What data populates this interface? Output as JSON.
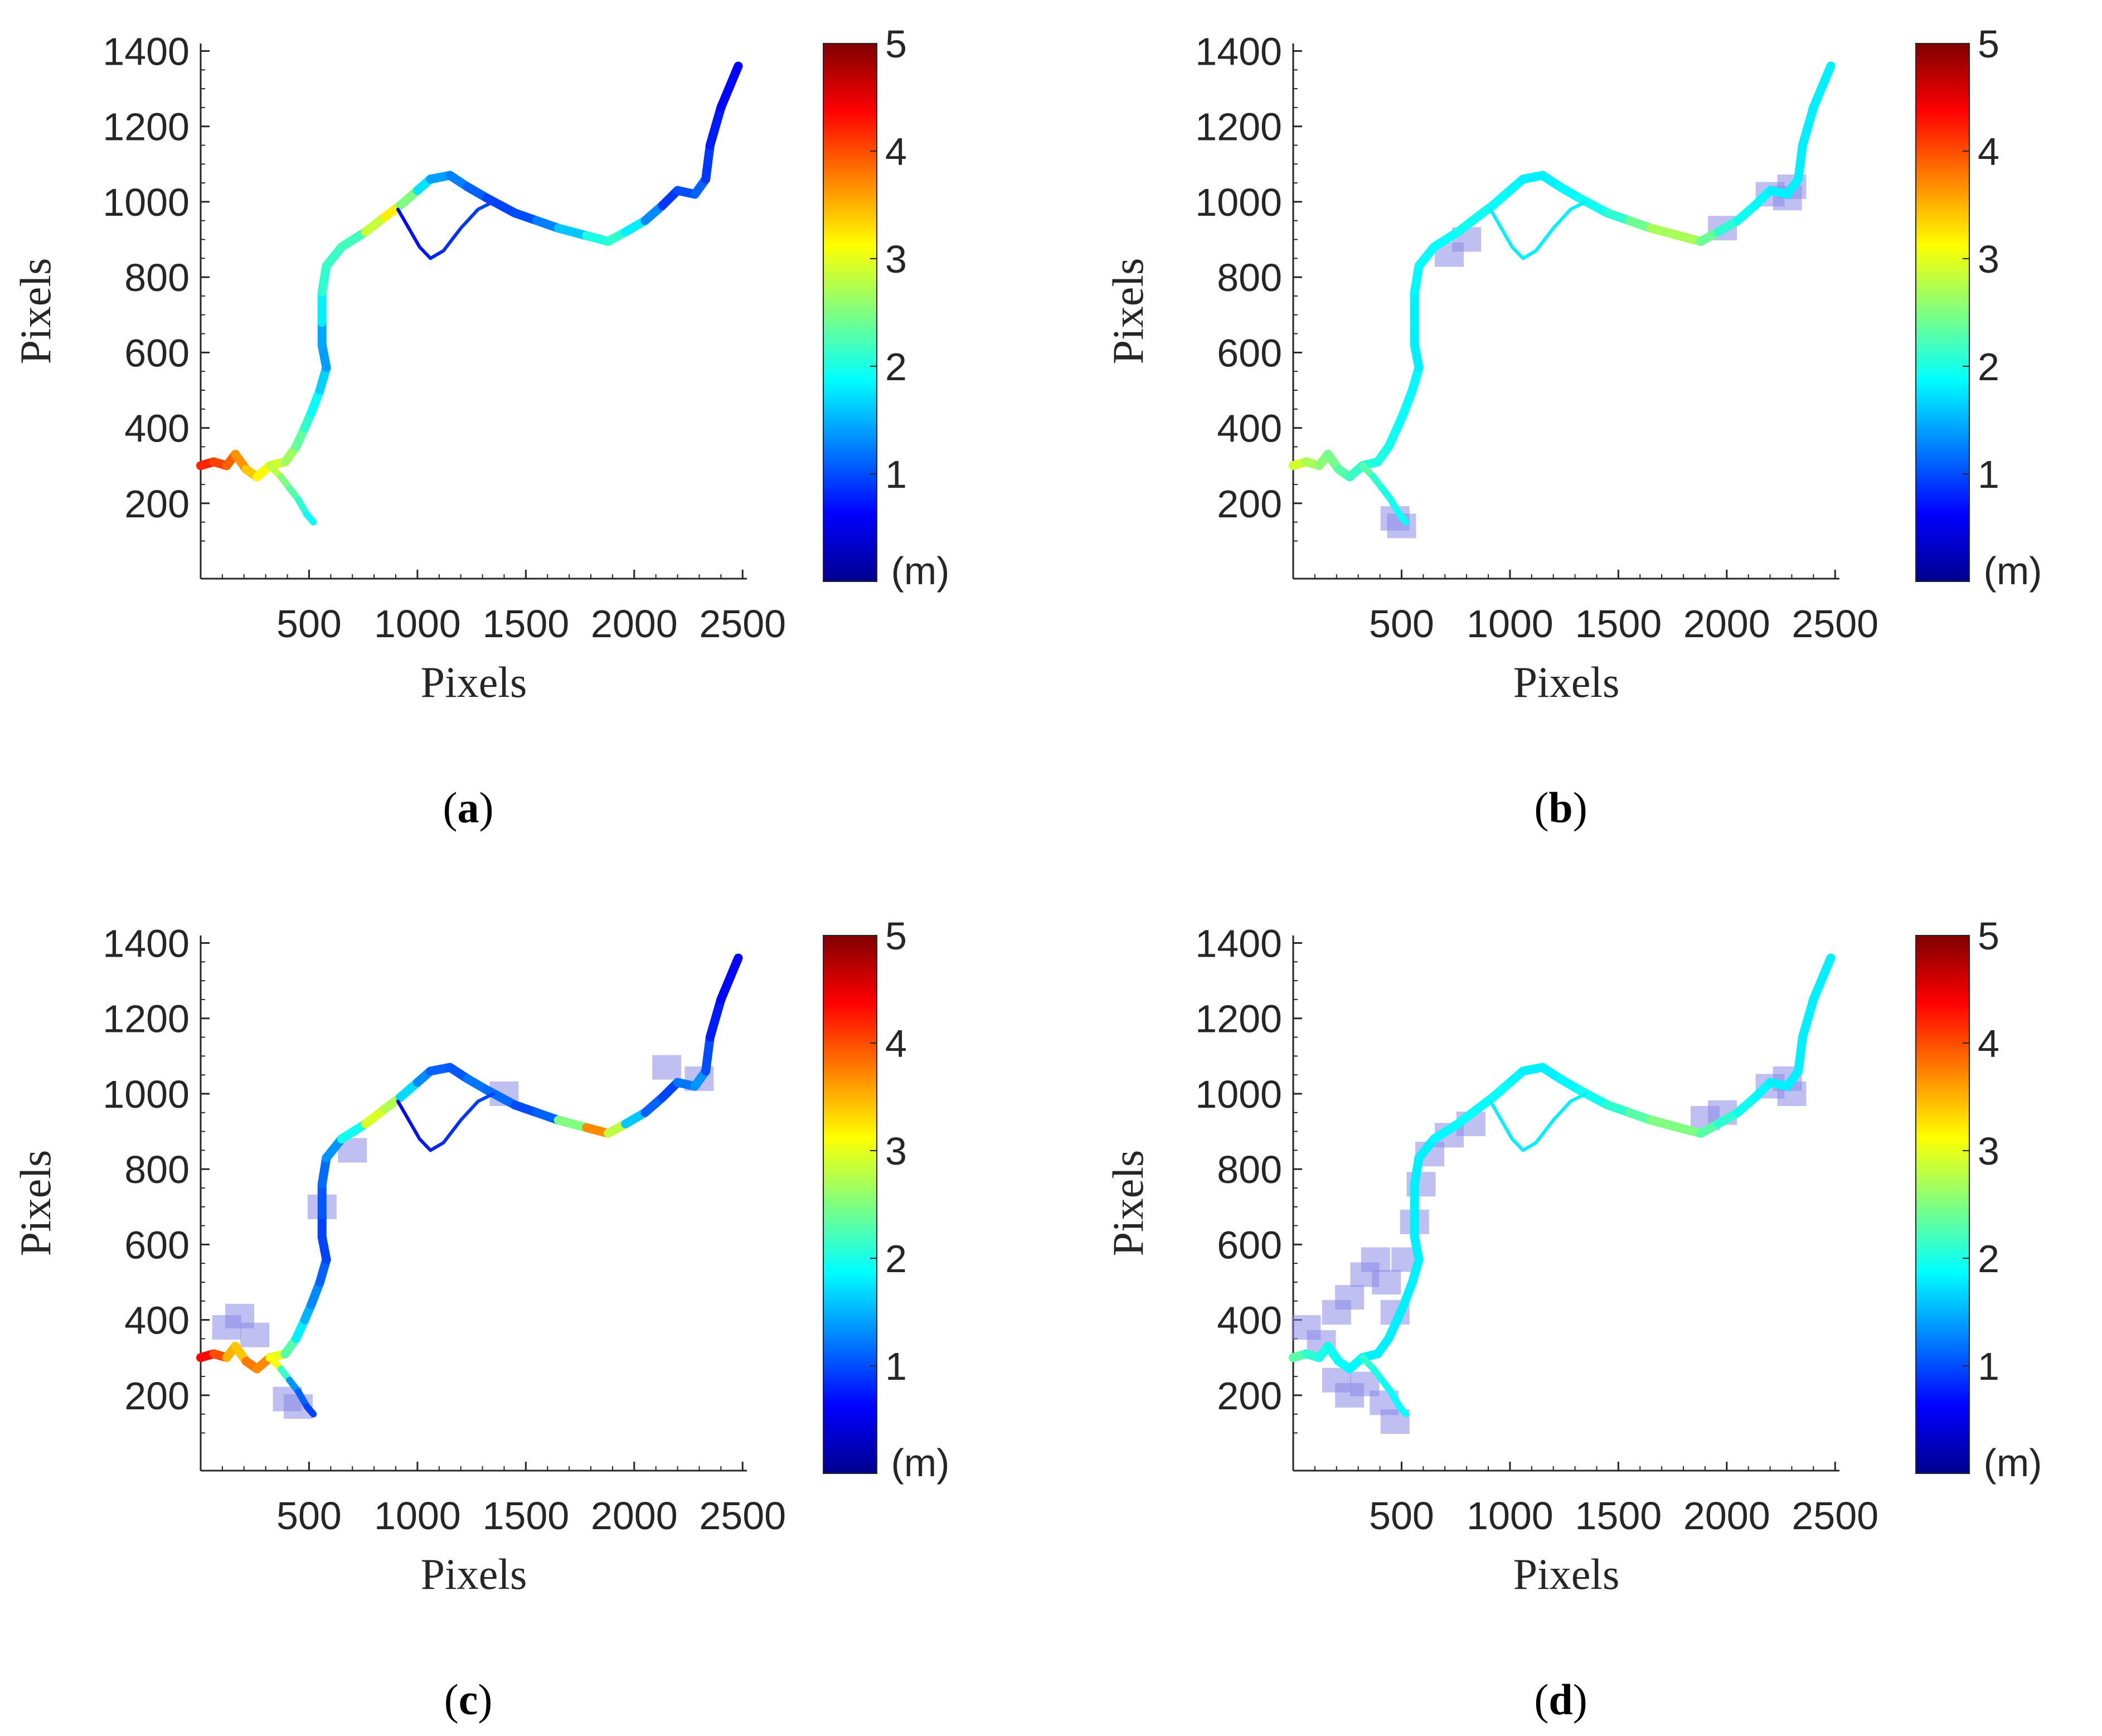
{
  "figure": {
    "colormap": "jet",
    "colormap_stops": [
      "#00008f",
      "#0000ff",
      "#0080ff",
      "#00ffff",
      "#80ff80",
      "#ffff00",
      "#ff8000",
      "#ff0000",
      "#800000"
    ]
  },
  "chart_data": [
    {
      "type": "heatmap",
      "panel": "a",
      "caption_letter": "a",
      "caption_open": "(",
      "caption_close": ")",
      "xlabel": "Pixels",
      "ylabel": "Pixels",
      "x_ticks": [
        "500",
        "1000",
        "1500",
        "2000",
        "2500"
      ],
      "y_ticks": [
        "1400",
        "1200",
        "1000",
        "800",
        "600",
        "400",
        "200"
      ],
      "xlim": [
        0,
        2520
      ],
      "ylim": [
        0,
        1420
      ],
      "colorbar": {
        "ticks": [
          "5",
          "4",
          "3",
          "2",
          "1"
        ],
        "range": [
          0,
          5
        ],
        "unit": "(m)"
      },
      "map_points": [
        [
          0,
          300
        ],
        [
          60,
          310
        ],
        [
          120,
          300
        ],
        [
          160,
          330
        ],
        [
          210,
          290
        ],
        [
          260,
          270
        ],
        [
          320,
          300
        ],
        [
          390,
          310
        ],
        [
          440,
          350
        ],
        [
          480,
          400
        ],
        [
          510,
          440
        ],
        [
          550,
          500
        ],
        [
          580,
          560
        ],
        [
          560,
          620
        ],
        [
          560,
          680
        ],
        [
          560,
          760
        ],
        [
          580,
          830
        ],
        [
          650,
          880
        ],
        [
          760,
          920
        ],
        [
          850,
          960
        ],
        [
          920,
          990
        ],
        [
          1000,
          1030
        ],
        [
          1060,
          1060
        ],
        [
          1150,
          1070
        ],
        [
          1230,
          1040
        ],
        [
          1320,
          1010
        ],
        [
          1450,
          970
        ],
        [
          1550,
          950
        ],
        [
          1650,
          930
        ],
        [
          1780,
          910
        ],
        [
          1880,
          895
        ],
        [
          1960,
          920
        ],
        [
          2050,
          950
        ],
        [
          2130,
          990
        ],
        [
          2200,
          1030
        ],
        [
          2280,
          1020
        ],
        [
          2330,
          1060
        ],
        [
          2350,
          1150
        ],
        [
          2400,
          1250
        ],
        [
          2480,
          1360
        ]
      ],
      "branch_points": [
        [
          910,
          980
        ],
        [
          960,
          930
        ],
        [
          1010,
          880
        ],
        [
          1060,
          850
        ],
        [
          1120,
          870
        ],
        [
          1200,
          930
        ],
        [
          1280,
          980
        ],
        [
          1350,
          1000
        ]
      ],
      "lower_branch": [
        [
          320,
          300
        ],
        [
          370,
          270
        ],
        [
          410,
          240
        ],
        [
          450,
          210
        ],
        [
          490,
          170
        ],
        [
          520,
          150
        ]
      ],
      "depths": [
        4.3,
        4.1,
        4.0,
        3.8,
        3.5,
        3.3,
        3.0,
        2.8,
        2.5,
        2.2,
        2.0,
        1.8,
        1.5,
        1.3,
        1.6,
        2.0,
        2.2,
        2.1,
        2.3,
        3.4,
        3.0,
        2.0,
        1.5,
        1.3,
        1.2,
        1.0,
        0.9,
        1.1,
        1.4,
        1.8,
        2.2,
        2.0,
        1.6,
        1.0,
        0.8,
        1.2,
        1.0,
        0.8,
        0.7,
        0.6
      ],
      "branch_depths": [
        0.6,
        0.7,
        0.7,
        0.8,
        0.8,
        0.9,
        0.9,
        1.0
      ],
      "lower_depths": [
        3.0,
        2.6,
        2.4,
        2.2,
        2.0,
        1.8
      ],
      "patches": []
    },
    {
      "type": "heatmap",
      "panel": "b",
      "caption_letter": "b",
      "caption_open": "(",
      "caption_close": ")",
      "xlabel": "Pixels",
      "ylabel": "Pixels",
      "x_ticks": [
        "500",
        "1000",
        "1500",
        "2000",
        "2500"
      ],
      "y_ticks": [
        "1400",
        "1200",
        "1000",
        "800",
        "600",
        "400",
        "200"
      ],
      "xlim": [
        0,
        2520
      ],
      "ylim": [
        0,
        1420
      ],
      "colorbar": {
        "ticks": [
          "5",
          "4",
          "3",
          "2",
          "1"
        ],
        "range": [
          0,
          5
        ],
        "unit": "(m)"
      },
      "map_points": [
        [
          0,
          300
        ],
        [
          60,
          310
        ],
        [
          120,
          300
        ],
        [
          160,
          330
        ],
        [
          210,
          290
        ],
        [
          260,
          270
        ],
        [
          320,
          300
        ],
        [
          390,
          310
        ],
        [
          440,
          350
        ],
        [
          480,
          400
        ],
        [
          510,
          440
        ],
        [
          550,
          500
        ],
        [
          580,
          560
        ],
        [
          560,
          620
        ],
        [
          560,
          680
        ],
        [
          560,
          760
        ],
        [
          580,
          830
        ],
        [
          650,
          880
        ],
        [
          760,
          920
        ],
        [
          850,
          960
        ],
        [
          920,
          990
        ],
        [
          1000,
          1030
        ],
        [
          1060,
          1060
        ],
        [
          1150,
          1070
        ],
        [
          1230,
          1040
        ],
        [
          1320,
          1010
        ],
        [
          1450,
          970
        ],
        [
          1550,
          950
        ],
        [
          1650,
          930
        ],
        [
          1780,
          910
        ],
        [
          1880,
          895
        ],
        [
          1960,
          920
        ],
        [
          2050,
          950
        ],
        [
          2130,
          990
        ],
        [
          2200,
          1030
        ],
        [
          2280,
          1020
        ],
        [
          2330,
          1060
        ],
        [
          2350,
          1150
        ],
        [
          2400,
          1250
        ],
        [
          2480,
          1360
        ]
      ],
      "branch_points": [
        [
          910,
          980
        ],
        [
          960,
          930
        ],
        [
          1010,
          880
        ],
        [
          1060,
          850
        ],
        [
          1120,
          870
        ],
        [
          1200,
          930
        ],
        [
          1280,
          980
        ],
        [
          1350,
          1000
        ]
      ],
      "lower_branch": [
        [
          320,
          300
        ],
        [
          370,
          270
        ],
        [
          410,
          240
        ],
        [
          450,
          210
        ],
        [
          490,
          170
        ],
        [
          520,
          150
        ]
      ],
      "depths": [
        3.0,
        2.8,
        2.6,
        2.5,
        2.4,
        2.2,
        2.1,
        2.0,
        2.0,
        1.9,
        1.9,
        1.9,
        1.8,
        1.8,
        1.8,
        1.8,
        1.9,
        1.9,
        1.9,
        2.0,
        1.9,
        1.9,
        1.8,
        1.8,
        1.8,
        1.9,
        2.0,
        2.2,
        2.6,
        2.8,
        2.6,
        2.2,
        2.0,
        1.9,
        1.8,
        1.8,
        1.8,
        1.8,
        1.8,
        1.8
      ],
      "branch_depths": [
        1.8,
        1.8,
        1.8,
        1.8,
        1.8,
        1.8,
        1.8,
        1.8
      ],
      "lower_depths": [
        2.4,
        2.2,
        2.0,
        2.0,
        1.9,
        1.9
      ],
      "patches": [
        [
          800,
          900
        ],
        [
          720,
          860
        ],
        [
          2200,
          1020
        ],
        [
          2280,
          1010
        ],
        [
          2300,
          1040
        ],
        [
          470,
          160
        ],
        [
          500,
          140
        ],
        [
          1980,
          930
        ]
      ]
    },
    {
      "type": "heatmap",
      "panel": "c",
      "caption_letter": "c",
      "caption_open": "(",
      "caption_close": ")",
      "xlabel": "Pixels",
      "ylabel": "Pixels",
      "x_ticks": [
        "500",
        "1000",
        "1500",
        "2000",
        "2500"
      ],
      "y_ticks": [
        "1400",
        "1200",
        "1000",
        "800",
        "600",
        "400",
        "200"
      ],
      "xlim": [
        0,
        2520
      ],
      "ylim": [
        0,
        1420
      ],
      "colorbar": {
        "ticks": [
          "5",
          "4",
          "3",
          "2",
          "1"
        ],
        "range": [
          0,
          5
        ],
        "unit": "(m)"
      },
      "map_points": [
        [
          0,
          300
        ],
        [
          60,
          310
        ],
        [
          120,
          300
        ],
        [
          160,
          330
        ],
        [
          210,
          290
        ],
        [
          260,
          270
        ],
        [
          320,
          300
        ],
        [
          390,
          310
        ],
        [
          440,
          350
        ],
        [
          480,
          400
        ],
        [
          510,
          440
        ],
        [
          550,
          500
        ],
        [
          580,
          560
        ],
        [
          560,
          620
        ],
        [
          560,
          680
        ],
        [
          560,
          760
        ],
        [
          580,
          830
        ],
        [
          650,
          880
        ],
        [
          760,
          920
        ],
        [
          850,
          960
        ],
        [
          920,
          990
        ],
        [
          1000,
          1030
        ],
        [
          1060,
          1060
        ],
        [
          1150,
          1070
        ],
        [
          1230,
          1040
        ],
        [
          1320,
          1010
        ],
        [
          1450,
          970
        ],
        [
          1550,
          950
        ],
        [
          1650,
          930
        ],
        [
          1780,
          910
        ],
        [
          1880,
          895
        ],
        [
          1960,
          920
        ],
        [
          2050,
          950
        ],
        [
          2130,
          990
        ],
        [
          2200,
          1030
        ],
        [
          2280,
          1020
        ],
        [
          2330,
          1060
        ],
        [
          2350,
          1150
        ],
        [
          2400,
          1250
        ],
        [
          2480,
          1360
        ]
      ],
      "branch_points": [
        [
          910,
          980
        ],
        [
          960,
          930
        ],
        [
          1010,
          880
        ],
        [
          1060,
          850
        ],
        [
          1120,
          870
        ],
        [
          1200,
          930
        ],
        [
          1280,
          980
        ],
        [
          1350,
          1000
        ]
      ],
      "lower_branch": [
        [
          320,
          300
        ],
        [
          370,
          270
        ],
        [
          410,
          240
        ],
        [
          450,
          210
        ],
        [
          490,
          170
        ],
        [
          520,
          150
        ]
      ],
      "depths": [
        4.5,
        4.2,
        3.8,
        3.2,
        3.6,
        4.0,
        3.4,
        2.6,
        2.0,
        1.6,
        1.4,
        1.2,
        1.0,
        0.9,
        1.0,
        1.1,
        1.2,
        1.5,
        2.4,
        3.5,
        2.0,
        1.4,
        1.2,
        1.0,
        1.1,
        1.3,
        1.0,
        1.0,
        1.2,
        3.8,
        3.6,
        2.0,
        1.2,
        1.0,
        0.9,
        1.5,
        1.2,
        0.8,
        0.7,
        0.6
      ],
      "branch_depths": [
        0.6,
        0.7,
        0.7,
        0.8,
        0.8,
        0.9,
        0.9,
        1.0
      ],
      "lower_depths": [
        3.4,
        2.8,
        1.5,
        1.2,
        1.0,
        0.9
      ],
      "patches": [
        [
          120,
          380
        ],
        [
          180,
          410
        ],
        [
          250,
          360
        ],
        [
          400,
          190
        ],
        [
          450,
          170
        ],
        [
          700,
          850
        ],
        [
          560,
          700
        ],
        [
          2150,
          1070
        ],
        [
          2300,
          1040
        ],
        [
          1400,
          1000
        ]
      ]
    },
    {
      "type": "heatmap",
      "panel": "d",
      "caption_letter": "d",
      "caption_open": "(",
      "caption_close": ")",
      "xlabel": "Pixels",
      "ylabel": "Pixels",
      "x_ticks": [
        "500",
        "1000",
        "1500",
        "2000",
        "2500"
      ],
      "y_ticks": [
        "1400",
        "1200",
        "1000",
        "800",
        "600",
        "400",
        "200"
      ],
      "xlim": [
        0,
        2520
      ],
      "ylim": [
        0,
        1420
      ],
      "colorbar": {
        "ticks": [
          "5",
          "4",
          "3",
          "2",
          "1"
        ],
        "range": [
          0,
          5
        ],
        "unit": "(m)"
      },
      "map_points": [
        [
          0,
          300
        ],
        [
          60,
          310
        ],
        [
          120,
          300
        ],
        [
          160,
          330
        ],
        [
          210,
          290
        ],
        [
          260,
          270
        ],
        [
          320,
          300
        ],
        [
          390,
          310
        ],
        [
          440,
          350
        ],
        [
          480,
          400
        ],
        [
          510,
          440
        ],
        [
          550,
          500
        ],
        [
          580,
          560
        ],
        [
          560,
          620
        ],
        [
          560,
          680
        ],
        [
          560,
          760
        ],
        [
          580,
          830
        ],
        [
          650,
          880
        ],
        [
          760,
          920
        ],
        [
          850,
          960
        ],
        [
          920,
          990
        ],
        [
          1000,
          1030
        ],
        [
          1060,
          1060
        ],
        [
          1150,
          1070
        ],
        [
          1230,
          1040
        ],
        [
          1320,
          1010
        ],
        [
          1450,
          970
        ],
        [
          1550,
          950
        ],
        [
          1650,
          930
        ],
        [
          1780,
          910
        ],
        [
          1880,
          895
        ],
        [
          1960,
          920
        ],
        [
          2050,
          950
        ],
        [
          2130,
          990
        ],
        [
          2200,
          1030
        ],
        [
          2280,
          1020
        ],
        [
          2330,
          1060
        ],
        [
          2350,
          1150
        ],
        [
          2400,
          1250
        ],
        [
          2480,
          1360
        ]
      ],
      "branch_points": [
        [
          910,
          980
        ],
        [
          960,
          930
        ],
        [
          1010,
          880
        ],
        [
          1060,
          850
        ],
        [
          1120,
          870
        ],
        [
          1200,
          930
        ],
        [
          1280,
          980
        ],
        [
          1350,
          1000
        ]
      ],
      "lower_branch": [
        [
          320,
          300
        ],
        [
          370,
          270
        ],
        [
          410,
          240
        ],
        [
          450,
          210
        ],
        [
          490,
          170
        ],
        [
          520,
          150
        ]
      ],
      "depths": [
        2.4,
        2.2,
        2.0,
        2.0,
        1.9,
        1.9,
        1.8,
        1.8,
        1.8,
        1.8,
        1.8,
        1.8,
        1.8,
        1.8,
        1.8,
        1.8,
        1.8,
        1.8,
        1.9,
        1.9,
        1.9,
        1.9,
        1.8,
        1.8,
        1.8,
        1.9,
        2.0,
        2.2,
        2.4,
        2.6,
        2.4,
        2.2,
        2.0,
        1.9,
        1.8,
        1.8,
        1.8,
        1.8,
        1.8,
        1.8
      ],
      "branch_depths": [
        1.8,
        1.8,
        1.8,
        1.8,
        1.8,
        1.8,
        1.8,
        1.8
      ],
      "lower_depths": [
        2.2,
        2.0,
        2.0,
        1.9,
        1.9,
        1.9
      ],
      "patches": [
        [
          60,
          380
        ],
        [
          130,
          340
        ],
        [
          200,
          420
        ],
        [
          260,
          460
        ],
        [
          330,
          520
        ],
        [
          380,
          560
        ],
        [
          430,
          500
        ],
        [
          470,
          420
        ],
        [
          520,
          560
        ],
        [
          560,
          660
        ],
        [
          590,
          760
        ],
        [
          630,
          840
        ],
        [
          720,
          890
        ],
        [
          820,
          920
        ],
        [
          200,
          240
        ],
        [
          260,
          200
        ],
        [
          330,
          230
        ],
        [
          420,
          180
        ],
        [
          470,
          130
        ],
        [
          1900,
          935
        ],
        [
          1980,
          950
        ],
        [
          2200,
          1020
        ],
        [
          2280,
          1040
        ],
        [
          2300,
          1000
        ]
      ]
    }
  ]
}
